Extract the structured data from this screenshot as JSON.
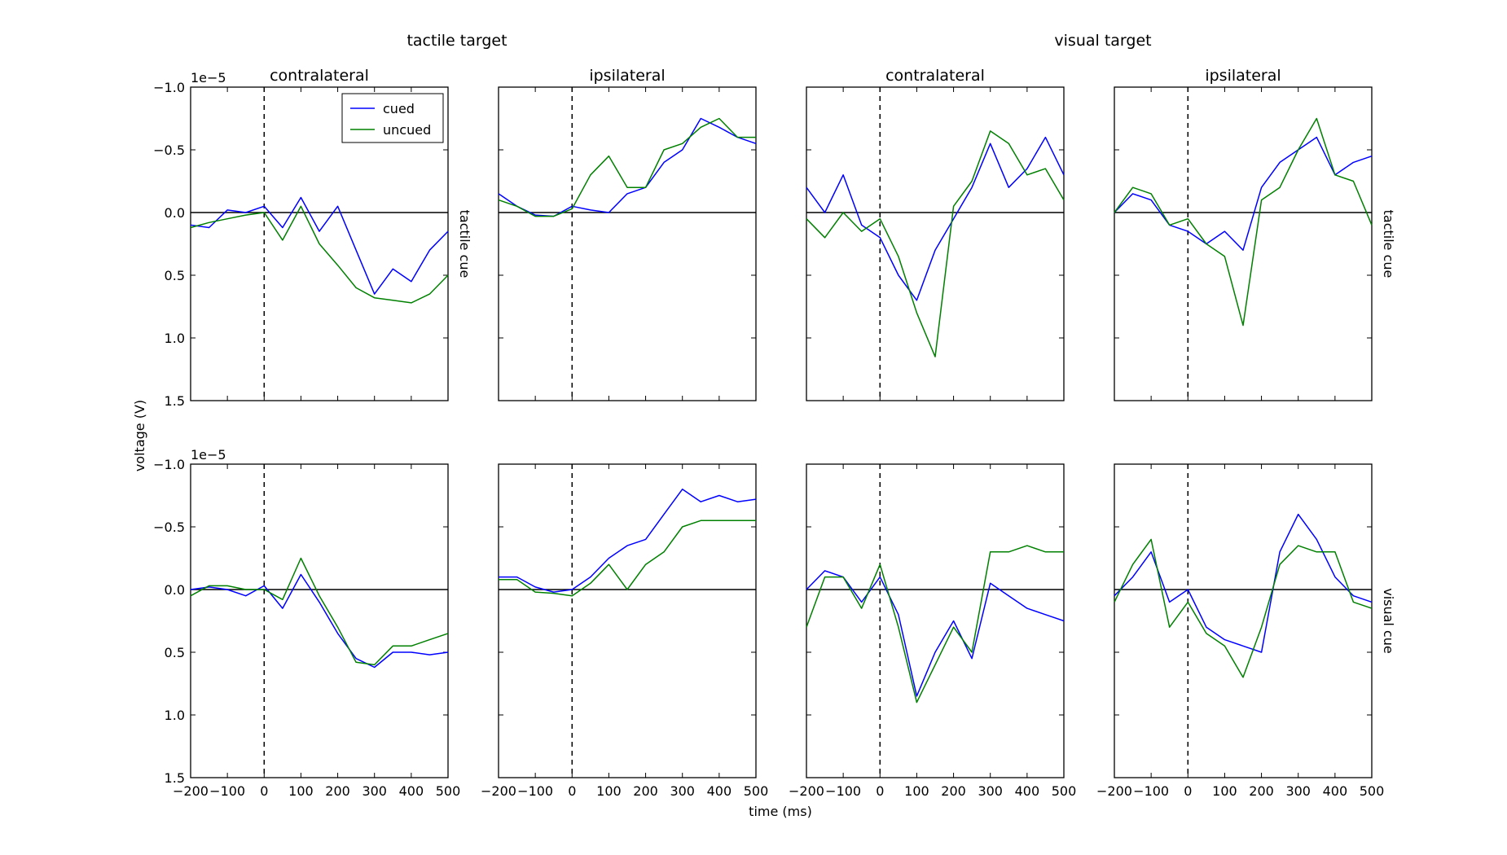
{
  "figure": {
    "column_groups": [
      "tactile target",
      "visual target"
    ],
    "xlabel": "time (ms)",
    "ylabel": "voltage (V)",
    "y_offset_label": "1e−5"
  },
  "chart_data": {
    "type": "line",
    "xlim": [
      -200,
      500
    ],
    "ylim": [
      1.5,
      -1.0
    ],
    "y_inverted": true,
    "y_scale_factor": "1e-5",
    "x_ticks": [
      -200,
      -100,
      0,
      100,
      200,
      300,
      400,
      500
    ],
    "x_tick_labels": [
      "−200",
      "−100",
      "0",
      "100",
      "200",
      "300",
      "400",
      "500"
    ],
    "y_ticks": [
      -1.0,
      -0.5,
      0.0,
      0.5,
      1.0,
      1.5
    ],
    "y_tick_labels": [
      "−1.0",
      "−0.5",
      "0.0",
      "0.5",
      "1.0",
      "1.5"
    ],
    "legend": {
      "placement": "top-right",
      "entries": [
        "cued",
        "uncued"
      ]
    },
    "colors": {
      "cued": "#0000ff",
      "uncued": "#008000"
    },
    "x": [
      -200,
      -150,
      -100,
      -50,
      0,
      50,
      100,
      150,
      200,
      250,
      300,
      350,
      400,
      450,
      500
    ],
    "panels": [
      {
        "column_title": "contralateral",
        "row_label": "tactile cue",
        "series": [
          {
            "name": "cued",
            "values": [
              0.1,
              0.12,
              -0.02,
              0.0,
              -0.05,
              0.12,
              -0.12,
              0.15,
              -0.05,
              0.3,
              0.65,
              0.45,
              0.55,
              0.3,
              0.15
            ]
          },
          {
            "name": "uncued",
            "values": [
              0.12,
              0.08,
              0.05,
              0.02,
              0.0,
              0.22,
              -0.05,
              0.25,
              0.42,
              0.6,
              0.68,
              0.7,
              0.72,
              0.65,
              0.5
            ]
          }
        ]
      },
      {
        "column_title": "ipsilateral",
        "row_label": "",
        "series": [
          {
            "name": "cued",
            "values": [
              -0.15,
              -0.05,
              0.02,
              0.03,
              -0.05,
              -0.02,
              0.0,
              -0.15,
              -0.2,
              -0.4,
              -0.5,
              -0.75,
              -0.68,
              -0.6,
              -0.55
            ]
          },
          {
            "name": "uncued",
            "values": [
              -0.1,
              -0.05,
              0.03,
              0.03,
              -0.03,
              -0.3,
              -0.45,
              -0.2,
              -0.2,
              -0.5,
              -0.55,
              -0.68,
              -0.75,
              -0.6,
              -0.6
            ]
          }
        ]
      },
      {
        "column_title": "contralateral",
        "row_label": "",
        "series": [
          {
            "name": "cued",
            "values": [
              -0.2,
              0.0,
              -0.3,
              0.1,
              0.2,
              0.5,
              0.7,
              0.3,
              0.05,
              -0.2,
              -0.55,
              -0.2,
              -0.35,
              -0.6,
              -0.3
            ]
          },
          {
            "name": "uncued",
            "values": [
              0.05,
              0.2,
              0.0,
              0.15,
              0.05,
              0.35,
              0.8,
              1.15,
              -0.05,
              -0.25,
              -0.65,
              -0.55,
              -0.3,
              -0.35,
              -0.1
            ]
          }
        ]
      },
      {
        "column_title": "ipsilateral",
        "row_label": "tactile cue",
        "series": [
          {
            "name": "cued",
            "values": [
              0.0,
              -0.15,
              -0.1,
              0.1,
              0.15,
              0.25,
              0.15,
              0.3,
              -0.2,
              -0.4,
              -0.5,
              -0.6,
              -0.3,
              -0.4,
              -0.45
            ]
          },
          {
            "name": "uncued",
            "values": [
              0.0,
              -0.2,
              -0.15,
              0.1,
              0.05,
              0.25,
              0.35,
              0.9,
              -0.1,
              -0.2,
              -0.5,
              -0.75,
              -0.3,
              -0.25,
              0.1
            ]
          }
        ]
      },
      {
        "column_title": "",
        "row_label": "",
        "series": [
          {
            "name": "cued",
            "values": [
              0.0,
              -0.02,
              0.0,
              0.05,
              -0.03,
              0.15,
              -0.12,
              0.1,
              0.35,
              0.55,
              0.62,
              0.5,
              0.5,
              0.52,
              0.5
            ]
          },
          {
            "name": "uncued",
            "values": [
              0.05,
              -0.03,
              -0.03,
              0.0,
              0.0,
              0.08,
              -0.25,
              0.05,
              0.3,
              0.58,
              0.6,
              0.45,
              0.45,
              0.4,
              0.35
            ]
          }
        ]
      },
      {
        "column_title": "",
        "row_label": "",
        "series": [
          {
            "name": "cued",
            "values": [
              -0.1,
              -0.1,
              -0.02,
              0.02,
              0.0,
              -0.1,
              -0.25,
              -0.35,
              -0.4,
              -0.6,
              -0.8,
              -0.7,
              -0.75,
              -0.7,
              -0.72
            ]
          },
          {
            "name": "uncued",
            "values": [
              -0.08,
              -0.08,
              0.02,
              0.03,
              0.05,
              -0.05,
              -0.2,
              0.0,
              -0.2,
              -0.3,
              -0.5,
              -0.55,
              -0.55,
              -0.55,
              -0.55
            ]
          }
        ]
      },
      {
        "column_title": "",
        "row_label": "",
        "series": [
          {
            "name": "cued",
            "values": [
              0.0,
              -0.15,
              -0.1,
              0.1,
              -0.1,
              0.2,
              0.85,
              0.5,
              0.25,
              0.55,
              -0.05,
              0.05,
              0.15,
              0.2,
              0.25
            ]
          },
          {
            "name": "uncued",
            "values": [
              0.3,
              -0.1,
              -0.1,
              0.15,
              -0.2,
              0.3,
              0.9,
              0.6,
              0.3,
              0.5,
              -0.3,
              -0.3,
              -0.35,
              -0.3,
              -0.3
            ]
          }
        ]
      },
      {
        "column_title": "",
        "row_label": "visual cue",
        "series": [
          {
            "name": "cued",
            "values": [
              0.05,
              -0.1,
              -0.3,
              0.1,
              0.0,
              0.3,
              0.4,
              0.45,
              0.5,
              -0.3,
              -0.6,
              -0.4,
              -0.1,
              0.05,
              0.1
            ]
          },
          {
            "name": "uncued",
            "values": [
              0.1,
              -0.2,
              -0.4,
              0.3,
              0.1,
              0.35,
              0.45,
              0.7,
              0.3,
              -0.2,
              -0.35,
              -0.3,
              -0.3,
              0.1,
              0.15
            ]
          }
        ]
      }
    ]
  }
}
